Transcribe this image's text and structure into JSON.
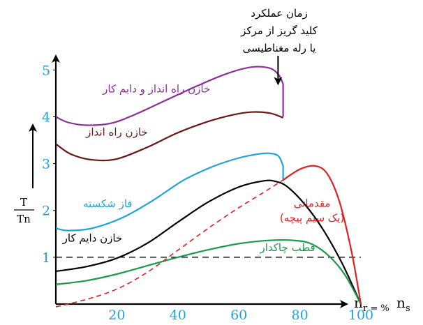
{
  "chart_data": {
    "type": "line",
    "y_axis": {
      "label_num": "T",
      "label_den": "Tn",
      "ticks": [
        "1",
        "2",
        "3",
        "4",
        "5"
      ],
      "tick_values": [
        1,
        2,
        3,
        4,
        5
      ],
      "range": [
        0,
        5.6
      ]
    },
    "x_axis": {
      "ticks": [
        "20",
        "40",
        "60",
        "80",
        "100"
      ],
      "tick_values": [
        20,
        40,
        60,
        80,
        100
      ],
      "range": [
        0,
        100
      ],
      "label_main": "n",
      "label_sub1": "r = %",
      "label_main2": "n",
      "label_sub2": "s"
    },
    "reference_line": {
      "y": 1,
      "style": "dashed"
    },
    "annotation": {
      "lines": [
        "زمان عملکرد",
        "کلید گریز از مرکز",
        "یا رله مغناطیسی"
      ],
      "x": 74,
      "arrow_from_y": 4.95,
      "arrow_to_y": 4.7
    },
    "series": [
      {
        "name": "خازن راه انداز و دایم کار",
        "color": "#8e2e98",
        "label_pos": [
          33,
          4.52
        ],
        "points": [
          [
            0,
            4.0
          ],
          [
            4,
            3.88
          ],
          [
            10,
            3.82
          ],
          [
            18,
            3.86
          ],
          [
            26,
            4.05
          ],
          [
            36,
            4.35
          ],
          [
            46,
            4.65
          ],
          [
            56,
            4.92
          ],
          [
            64,
            5.06
          ],
          [
            70,
            5.04
          ],
          [
            73,
            4.9
          ],
          [
            74.5,
            4.7
          ],
          [
            74.5,
            4.0
          ]
        ]
      },
      {
        "name": "خازن راه انداز",
        "color": "#6b1616",
        "label_pos": [
          20,
          3.6
        ],
        "points": [
          [
            0,
            3.42
          ],
          [
            5,
            3.2
          ],
          [
            12,
            3.08
          ],
          [
            20,
            3.1
          ],
          [
            30,
            3.35
          ],
          [
            40,
            3.66
          ],
          [
            50,
            3.9
          ],
          [
            58,
            4.04
          ],
          [
            64,
            4.1
          ],
          [
            70,
            4.08
          ],
          [
            74.5,
            3.98
          ]
        ]
      },
      {
        "name": "فاز شکسته",
        "color": "#1fa3dc",
        "label_pos": [
          17,
          2.07
        ],
        "points": [
          [
            0,
            1.62
          ],
          [
            4,
            1.57
          ],
          [
            12,
            1.62
          ],
          [
            22,
            1.85
          ],
          [
            32,
            2.22
          ],
          [
            42,
            2.65
          ],
          [
            52,
            2.95
          ],
          [
            60,
            3.12
          ],
          [
            66,
            3.2
          ],
          [
            70,
            3.22
          ],
          [
            73,
            3.16
          ],
          [
            74.5,
            2.95
          ],
          [
            74.5,
            2.65
          ]
        ]
      },
      {
        "name": "خازن دایم کار",
        "color": "#000000",
        "label_pos": [
          12,
          1.33
        ],
        "points": [
          [
            0,
            0.7
          ],
          [
            10,
            0.8
          ],
          [
            20,
            0.98
          ],
          [
            30,
            1.3
          ],
          [
            40,
            1.75
          ],
          [
            50,
            2.18
          ],
          [
            60,
            2.5
          ],
          [
            68,
            2.63
          ],
          [
            72,
            2.62
          ],
          [
            76,
            2.5
          ],
          [
            82,
            2.1
          ],
          [
            88,
            1.55
          ],
          [
            94,
            0.85
          ],
          [
            100,
            0.0
          ]
        ]
      },
      {
        "name": "قطب چاکدار",
        "color": "#1a9a4a",
        "label_pos": [
          76,
          1.13
        ],
        "points": [
          [
            0,
            0.42
          ],
          [
            10,
            0.5
          ],
          [
            20,
            0.64
          ],
          [
            30,
            0.82
          ],
          [
            40,
            1.0
          ],
          [
            50,
            1.16
          ],
          [
            60,
            1.29
          ],
          [
            70,
            1.36
          ],
          [
            78,
            1.36
          ],
          [
            84,
            1.28
          ],
          [
            90,
            1.0
          ],
          [
            95,
            0.6
          ],
          [
            100,
            0.0
          ]
        ]
      },
      {
        "name": "مقدماتی",
        "name_line2": "(یک سیم پیچه)",
        "color": "#e02020",
        "dashed_until": 74.5,
        "label_pos": [
          84,
          2.08
        ],
        "points": [
          [
            0,
            -0.06
          ],
          [
            10,
            0.1
          ],
          [
            20,
            0.32
          ],
          [
            30,
            0.68
          ],
          [
            40,
            1.15
          ],
          [
            50,
            1.62
          ],
          [
            60,
            2.06
          ],
          [
            68,
            2.38
          ],
          [
            74.5,
            2.65
          ],
          [
            80,
            2.88
          ],
          [
            85,
            2.95
          ],
          [
            89,
            2.78
          ],
          [
            93,
            2.18
          ],
          [
            97,
            1.1
          ],
          [
            100,
            0.0
          ]
        ]
      }
    ]
  }
}
